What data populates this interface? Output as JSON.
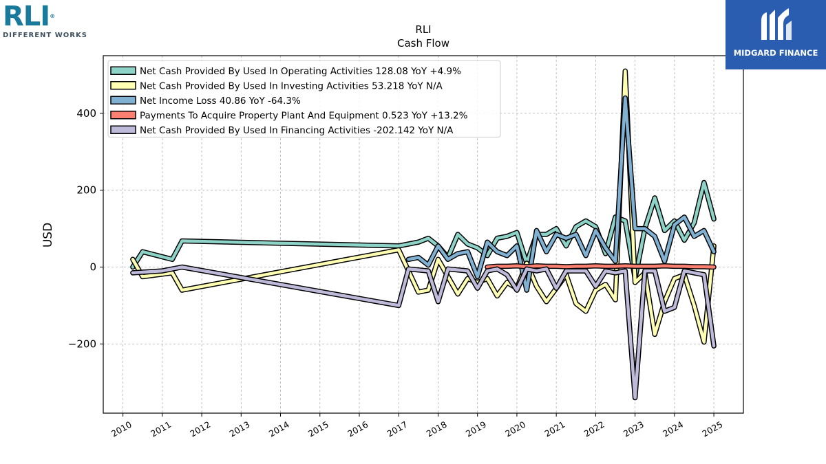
{
  "brand_left": {
    "name": "RLI",
    "registered": "®",
    "tagline": "DIFFERENT WORKS"
  },
  "brand_right": {
    "name": "MIDGARD FINANCE"
  },
  "chart_data": {
    "type": "line",
    "title": "RLI",
    "subtitle": "Cash Flow",
    "ylabel": "USD",
    "xlabel": "",
    "xlim": [
      2009.5,
      2025.75
    ],
    "ylim": [
      -380,
      550
    ],
    "yticks": [
      -200,
      0,
      200,
      400
    ],
    "ytick_labels": [
      "−200",
      "0",
      "200",
      "400"
    ],
    "xticks": [
      2010,
      2011,
      2012,
      2013,
      2014,
      2015,
      2016,
      2017,
      2018,
      2019,
      2020,
      2021,
      2022,
      2023,
      2024,
      2025
    ],
    "xtick_labels": [
      "2010",
      "2011",
      "2012",
      "2013",
      "2014",
      "2015",
      "2016",
      "2017",
      "2018",
      "2019",
      "2020",
      "2021",
      "2022",
      "2023",
      "2024",
      "2025"
    ],
    "grid": true,
    "legend_position": "top-left",
    "series": [
      {
        "name": "Net Cash Provided By Used In Operating Activities",
        "legend": "Net Cash Provided By Used In Operating Activities  128.08 YoY +4.9%",
        "color": "#8dd3c7",
        "points": [
          [
            2010.25,
            0
          ],
          [
            2010.5,
            40
          ],
          [
            2011.25,
            20
          ],
          [
            2011.5,
            68
          ],
          [
            2017.0,
            55
          ],
          [
            2017.5,
            65
          ],
          [
            2017.75,
            75
          ],
          [
            2018.0,
            55
          ],
          [
            2018.25,
            25
          ],
          [
            2018.5,
            85
          ],
          [
            2018.75,
            60
          ],
          [
            2019.0,
            50
          ],
          [
            2019.25,
            30
          ],
          [
            2019.5,
            75
          ],
          [
            2019.75,
            80
          ],
          [
            2020.0,
            90
          ],
          [
            2020.25,
            10
          ],
          [
            2020.5,
            85
          ],
          [
            2020.75,
            85
          ],
          [
            2021.0,
            100
          ],
          [
            2021.25,
            55
          ],
          [
            2021.5,
            105
          ],
          [
            2021.75,
            120
          ],
          [
            2022.0,
            105
          ],
          [
            2022.25,
            35
          ],
          [
            2022.5,
            130
          ],
          [
            2022.75,
            120
          ],
          [
            2023.0,
            -30
          ],
          [
            2023.25,
            100
          ],
          [
            2023.5,
            180
          ],
          [
            2023.75,
            95
          ],
          [
            2024.0,
            120
          ],
          [
            2024.25,
            70
          ],
          [
            2024.5,
            115
          ],
          [
            2024.75,
            220
          ],
          [
            2025.0,
            125
          ]
        ]
      },
      {
        "name": "Net Cash Provided By Used In Investing Activities",
        "legend": "Net Cash Provided By Used In Investing Activities  53.218 YoY N/A",
        "color": "#ffffb3",
        "points": [
          [
            2010.25,
            20
          ],
          [
            2010.5,
            -25
          ],
          [
            2011.25,
            -15
          ],
          [
            2011.5,
            -60
          ],
          [
            2017.0,
            45
          ],
          [
            2017.5,
            -65
          ],
          [
            2017.75,
            -60
          ],
          [
            2018.0,
            20
          ],
          [
            2018.25,
            -25
          ],
          [
            2018.5,
            -70
          ],
          [
            2018.75,
            -30
          ],
          [
            2019.0,
            -40
          ],
          [
            2019.25,
            -30
          ],
          [
            2019.5,
            -75
          ],
          [
            2019.75,
            -40
          ],
          [
            2020.0,
            -55
          ],
          [
            2020.25,
            10
          ],
          [
            2020.5,
            -50
          ],
          [
            2020.75,
            -90
          ],
          [
            2021.0,
            -55
          ],
          [
            2021.25,
            -20
          ],
          [
            2021.5,
            -95
          ],
          [
            2021.75,
            -115
          ],
          [
            2022.0,
            -60
          ],
          [
            2022.25,
            -45
          ],
          [
            2022.5,
            -85
          ],
          [
            2022.75,
            510
          ],
          [
            2023.0,
            -40
          ],
          [
            2023.25,
            -15
          ],
          [
            2023.5,
            -175
          ],
          [
            2023.75,
            -90
          ],
          [
            2024.0,
            -30
          ],
          [
            2024.25,
            -20
          ],
          [
            2024.5,
            -100
          ],
          [
            2024.75,
            -195
          ],
          [
            2025.0,
            55
          ]
        ]
      },
      {
        "name": "Net Income Loss",
        "legend": "Net Income Loss  40.86 YoY -64.3%",
        "color": "#80b1d3",
        "points": [
          [
            2017.25,
            20
          ],
          [
            2017.5,
            25
          ],
          [
            2017.75,
            5
          ],
          [
            2018.0,
            55
          ],
          [
            2018.25,
            20
          ],
          [
            2018.5,
            35
          ],
          [
            2018.75,
            40
          ],
          [
            2019.0,
            -25
          ],
          [
            2019.25,
            65
          ],
          [
            2019.5,
            40
          ],
          [
            2019.75,
            30
          ],
          [
            2020.0,
            55
          ],
          [
            2020.25,
            -60
          ],
          [
            2020.5,
            95
          ],
          [
            2020.75,
            40
          ],
          [
            2021.0,
            85
          ],
          [
            2021.25,
            75
          ],
          [
            2021.5,
            85
          ],
          [
            2021.75,
            30
          ],
          [
            2022.0,
            95
          ],
          [
            2022.25,
            50
          ],
          [
            2022.5,
            15
          ],
          [
            2022.75,
            440
          ],
          [
            2023.0,
            100
          ],
          [
            2023.25,
            100
          ],
          [
            2023.5,
            80
          ],
          [
            2023.75,
            15
          ],
          [
            2024.0,
            110
          ],
          [
            2024.25,
            130
          ],
          [
            2024.5,
            80
          ],
          [
            2024.75,
            95
          ],
          [
            2025.0,
            40
          ]
        ]
      },
      {
        "name": "Payments To Acquire Property Plant And Equipment",
        "legend": "Payments To Acquire Property Plant And Equipment  0.523 YoY +13.2%",
        "color": "#fb8072",
        "points": [
          [
            2019.25,
            0
          ],
          [
            2019.5,
            2
          ],
          [
            2019.75,
            2
          ],
          [
            2020.0,
            3
          ],
          [
            2020.25,
            1
          ],
          [
            2020.5,
            3
          ],
          [
            2020.75,
            2
          ],
          [
            2021.0,
            2
          ],
          [
            2021.25,
            1
          ],
          [
            2021.5,
            2
          ],
          [
            2021.75,
            2
          ],
          [
            2022.0,
            3
          ],
          [
            2022.25,
            2
          ],
          [
            2022.5,
            2
          ],
          [
            2022.75,
            3
          ],
          [
            2023.0,
            2
          ],
          [
            2023.25,
            2
          ],
          [
            2023.5,
            2
          ],
          [
            2023.75,
            3
          ],
          [
            2024.0,
            2
          ],
          [
            2024.25,
            2
          ],
          [
            2024.5,
            1
          ],
          [
            2024.75,
            1
          ],
          [
            2025.0,
            0
          ]
        ]
      },
      {
        "name": "Net Cash Provided By Used In Financing Activities",
        "legend": "Net Cash Provided By Used In Financing Activities  -202.142 YoY N/A",
        "color": "#bebada",
        "points": [
          [
            2010.25,
            -15
          ],
          [
            2011.0,
            -10
          ],
          [
            2011.5,
            0
          ],
          [
            2017.0,
            -100
          ],
          [
            2017.25,
            -5
          ],
          [
            2017.75,
            -10
          ],
          [
            2018.0,
            -90
          ],
          [
            2018.25,
            -5
          ],
          [
            2018.75,
            -10
          ],
          [
            2019.0,
            -55
          ],
          [
            2019.25,
            -10
          ],
          [
            2019.5,
            -5
          ],
          [
            2019.75,
            -20
          ],
          [
            2020.0,
            -60
          ],
          [
            2020.25,
            -5
          ],
          [
            2020.5,
            -10
          ],
          [
            2020.75,
            -5
          ],
          [
            2021.0,
            -55
          ],
          [
            2021.25,
            -10
          ],
          [
            2021.75,
            -10
          ],
          [
            2022.0,
            -50
          ],
          [
            2022.25,
            -10
          ],
          [
            2022.5,
            -15
          ],
          [
            2022.75,
            -10
          ],
          [
            2023.0,
            -340
          ],
          [
            2023.25,
            -10
          ],
          [
            2023.5,
            -10
          ],
          [
            2023.75,
            -115
          ],
          [
            2024.0,
            -105
          ],
          [
            2024.25,
            -10
          ],
          [
            2024.5,
            -15
          ],
          [
            2024.75,
            -20
          ],
          [
            2025.0,
            -205
          ]
        ]
      }
    ]
  }
}
